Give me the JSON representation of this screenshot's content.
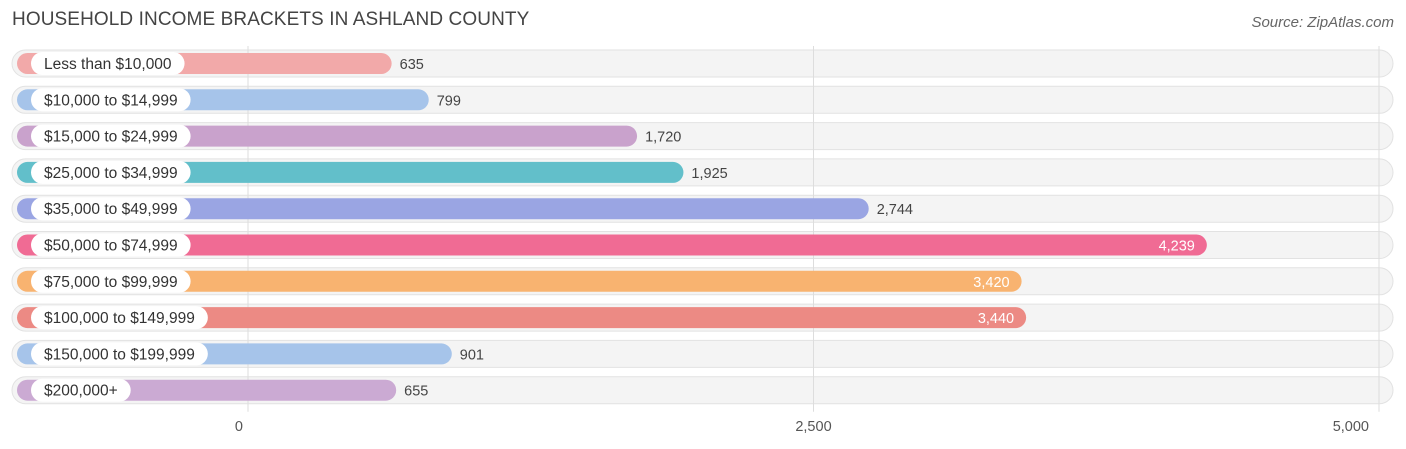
{
  "chart_data": {
    "type": "bar",
    "orientation": "horizontal",
    "title": "HOUSEHOLD INCOME BRACKETS IN ASHLAND COUNTY",
    "source": "Source: ZipAtlas.com",
    "categories": [
      "Less than $10,000",
      "$10,000 to $14,999",
      "$15,000 to $24,999",
      "$25,000 to $34,999",
      "$35,000 to $49,999",
      "$50,000 to $74,999",
      "$75,000 to $99,999",
      "$100,000 to $149,999",
      "$150,000 to $199,999",
      "$200,000+"
    ],
    "values": [
      635,
      799,
      1720,
      1925,
      2744,
      4239,
      3420,
      3440,
      901,
      655
    ],
    "value_labels": [
      "635",
      "799",
      "1,720",
      "1,925",
      "2,744",
      "4,239",
      "3,420",
      "3,440",
      "901",
      "655"
    ],
    "colors": [
      "#f2a9a9",
      "#a6c4ea",
      "#c9a2cc",
      "#62bfca",
      "#9aa5e3",
      "#f06b94",
      "#f8b370",
      "#ec8a84",
      "#a6c4ea",
      "#cbaad3"
    ],
    "xlim": [
      0,
      5000
    ],
    "xticks": [
      0,
      2500,
      5000
    ],
    "xtick_labels": [
      "0",
      "2,500",
      "5,000"
    ],
    "xlabel": "",
    "ylabel": "",
    "grid": true
  }
}
